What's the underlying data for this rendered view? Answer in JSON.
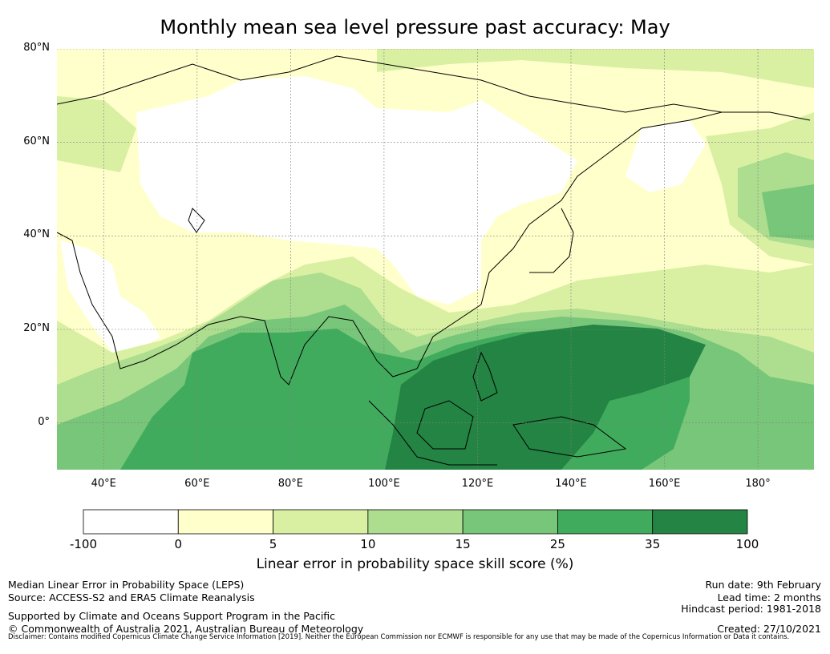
{
  "title": "Monthly mean sea level pressure past accuracy: May",
  "map": {
    "lat_ticks": [
      "80°N",
      "60°N",
      "40°N",
      "20°N",
      "0°"
    ],
    "lon_ticks": [
      "40°E",
      "60°E",
      "80°E",
      "100°E",
      "120°E",
      "140°E",
      "160°E",
      "180°"
    ],
    "extent": {
      "lon_min": 30,
      "lon_max": 192,
      "lat_min": -10,
      "lat_max": 80
    }
  },
  "colorbar": {
    "label": "Linear error in probability space skill score (%)",
    "bounds": [
      "-100",
      "0",
      "5",
      "10",
      "15",
      "25",
      "35",
      "100"
    ],
    "colors": [
      "#ffffff",
      "#ffffcc",
      "#d9f0a3",
      "#addd8e",
      "#78c679",
      "#41ab5d",
      "#238443"
    ]
  },
  "colors": {
    "coastline": "#000000",
    "gridline": "#808080"
  },
  "info": {
    "left": {
      "product": "Median Linear Error in Probability Space (LEPS)",
      "source": "Source: ACCESS-S2 and ERA5 Climate Reanalysis",
      "support": "Supported by Climate and Oceans Support Program in the Pacific",
      "copyright": "© Commonwealth of Australia 2021, Australian Bureau of Meteorology"
    },
    "right": {
      "run_date": "Run date: 9th February",
      "lead_time": "Lead time: 2 months",
      "hindcast": "Hindcast period: 1981-2018",
      "created": "Created: 27/10/2021"
    },
    "disclaimer": "Disclaimer: Contains modified Copernicus Climate Change Service Information [2019]. Neither the European Commission nor ECMWF is responsible for any use that may be made of the Copernicus Information or Data it contains."
  }
}
